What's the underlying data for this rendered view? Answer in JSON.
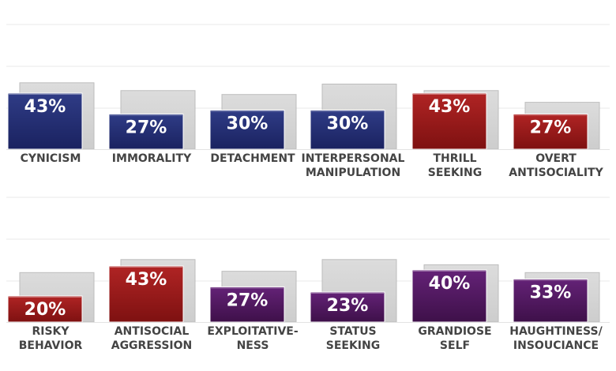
{
  "chart_data": [
    {
      "type": "bar",
      "title": "",
      "categories": [
        [
          "CYNICISM"
        ],
        [
          "IMMORALITY"
        ],
        [
          "DETACHMENT"
        ],
        [
          "INTERPERSONAL",
          "MANIPULATION"
        ],
        [
          "THRILL",
          "SEEKING"
        ],
        [
          "OVERT",
          "ANTISOCIALITY"
        ]
      ],
      "values": [
        43,
        27,
        30,
        30,
        43,
        27
      ],
      "value_labels": [
        "43%",
        "27%",
        "30%",
        "30%",
        "43%",
        "27%"
      ],
      "background_values": [
        51,
        45,
        42,
        50,
        45,
        36
      ],
      "colors": [
        "#1f2a6b",
        "#1f2a6b",
        "#1f2a6b",
        "#1f2a6b",
        "#8e1717",
        "#8e1717"
      ],
      "ylim": [
        0,
        100
      ],
      "grid": true
    },
    {
      "type": "bar",
      "title": "",
      "categories": [
        [
          "RISKY",
          "BEHAVIOR"
        ],
        [
          "ANTISOCIAL",
          "AGGRESSION"
        ],
        [
          "EXPLOITATIVE-",
          "NESS"
        ],
        [
          "STATUS",
          "SEEKING"
        ],
        [
          "GRANDIOSE",
          "SELF"
        ],
        [
          "HAUGHTINESS/",
          "INSOUCIANCE"
        ]
      ],
      "values": [
        20,
        43,
        27,
        23,
        40,
        33
      ],
      "value_labels": [
        "20%",
        "43%",
        "27%",
        "23%",
        "40%",
        "33%"
      ],
      "background_values": [
        38,
        48,
        39,
        48,
        44,
        38
      ],
      "colors": [
        "#8e1717",
        "#8e1717",
        "#4a1657",
        "#4a1657",
        "#4a1657",
        "#4a1657"
      ],
      "ylim": [
        0,
        100
      ],
      "grid": true
    }
  ]
}
